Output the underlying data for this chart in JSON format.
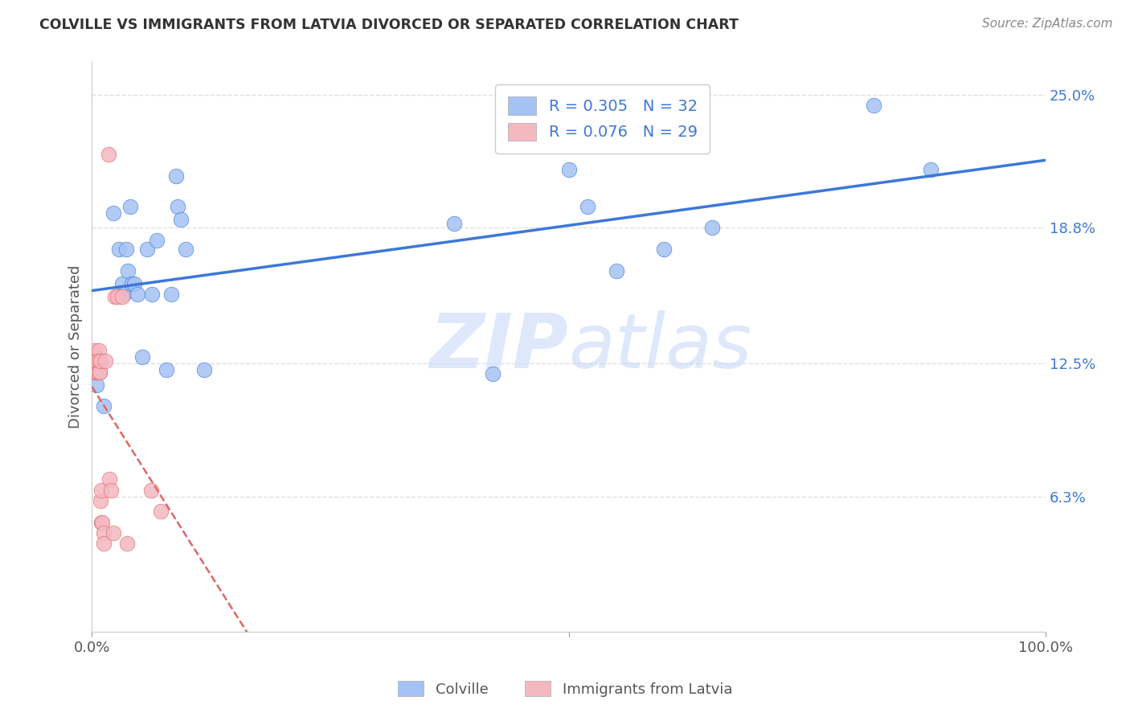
{
  "title": "COLVILLE VS IMMIGRANTS FROM LATVIA DIVORCED OR SEPARATED CORRELATION CHART",
  "source": "Source: ZipAtlas.com",
  "ylabel": "Divorced or Separated",
  "colville_R": 0.305,
  "colville_N": 32,
  "latvia_R": 0.076,
  "latvia_N": 29,
  "colville_color": "#a4c2f4",
  "latvia_color": "#f4b8c1",
  "colville_line_color": "#3c78d8",
  "latvia_line_color": "#e06666",
  "legend_text_color": "#3c78d8",
  "colville_x": [
    0.005,
    0.012,
    0.022,
    0.028,
    0.032,
    0.033,
    0.036,
    0.038,
    0.04,
    0.042,
    0.044,
    0.048,
    0.053,
    0.058,
    0.063,
    0.068,
    0.078,
    0.083,
    0.088,
    0.09,
    0.093,
    0.098,
    0.118,
    0.38,
    0.42,
    0.5,
    0.52,
    0.55,
    0.6,
    0.65,
    0.82,
    0.88
  ],
  "colville_y": [
    0.115,
    0.105,
    0.195,
    0.178,
    0.162,
    0.157,
    0.178,
    0.168,
    0.198,
    0.162,
    0.162,
    0.157,
    0.128,
    0.178,
    0.157,
    0.182,
    0.122,
    0.157,
    0.212,
    0.198,
    0.192,
    0.178,
    0.122,
    0.19,
    0.12,
    0.215,
    0.198,
    0.168,
    0.178,
    0.188,
    0.245,
    0.215
  ],
  "latvia_x": [
    0.002,
    0.003,
    0.003,
    0.004,
    0.004,
    0.005,
    0.006,
    0.007,
    0.007,
    0.008,
    0.008,
    0.009,
    0.009,
    0.01,
    0.01,
    0.011,
    0.012,
    0.012,
    0.014,
    0.017,
    0.018,
    0.02,
    0.022,
    0.024,
    0.027,
    0.032,
    0.037,
    0.062,
    0.072
  ],
  "latvia_y": [
    0.126,
    0.121,
    0.131,
    0.121,
    0.126,
    0.126,
    0.121,
    0.131,
    0.126,
    0.121,
    0.121,
    0.126,
    0.061,
    0.066,
    0.051,
    0.051,
    0.046,
    0.041,
    0.126,
    0.222,
    0.071,
    0.066,
    0.046,
    0.156,
    0.156,
    0.156,
    0.041,
    0.066,
    0.056
  ],
  "background_color": "#ffffff",
  "watermark_line1": "ZIP",
  "watermark_line2": "atlas",
  "grid_color": "#e0e0e0",
  "y_ticks": [
    0.0,
    0.063,
    0.125,
    0.188,
    0.25
  ],
  "y_tick_labels": [
    "",
    "6.3%",
    "12.5%",
    "18.8%",
    "25.0%"
  ]
}
